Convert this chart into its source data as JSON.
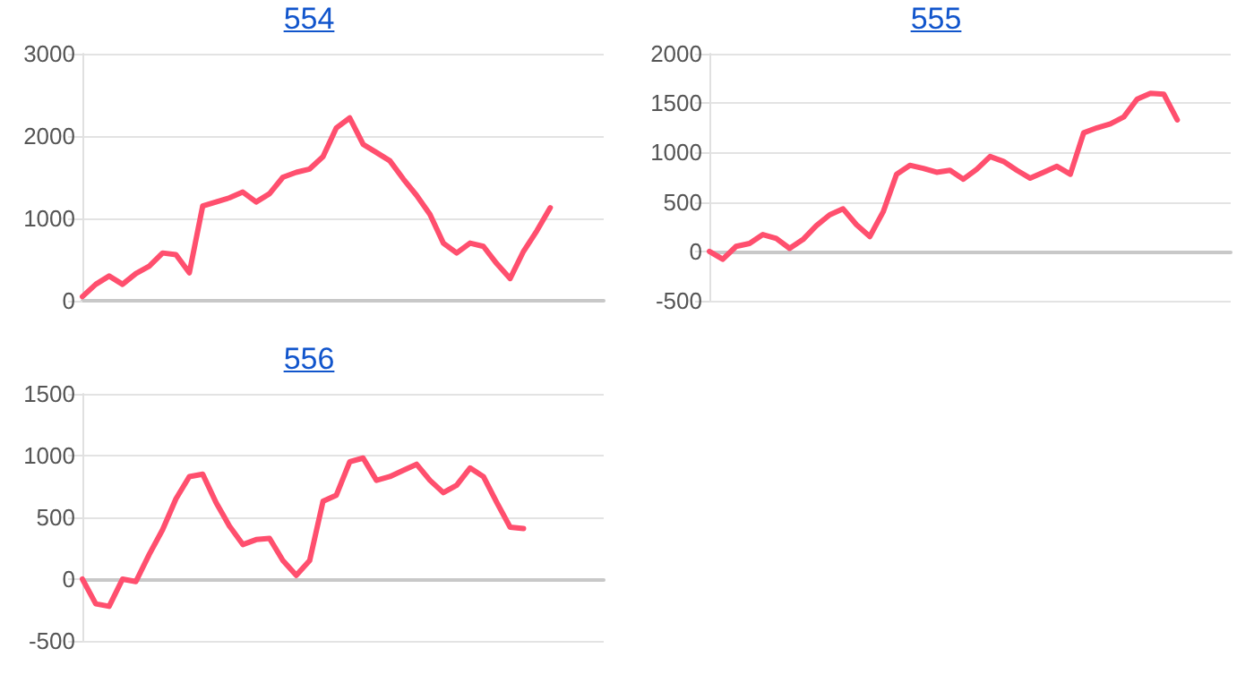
{
  "chart_data": [
    {
      "type": "line",
      "title": "554",
      "categories": [
        null,
        null,
        null,
        null,
        null,
        null,
        null,
        null,
        null,
        null,
        null,
        null,
        null,
        null,
        null,
        null,
        null,
        null,
        null,
        null,
        null,
        null,
        null,
        null,
        null,
        null,
        null,
        null,
        null,
        null,
        null,
        null,
        null,
        null,
        null,
        null,
        null,
        null,
        null,
        null
      ],
      "series": [
        {
          "color": "#ff4f6e",
          "values": [
            50,
            200,
            300,
            200,
            330,
            420,
            580,
            560,
            340,
            1150,
            1200,
            1250,
            1320,
            1200,
            1300,
            1500,
            1560,
            1600,
            1750,
            2100,
            2220,
            1900,
            1800,
            1700,
            1480,
            1280,
            1050,
            700,
            580,
            700,
            660,
            450,
            270,
            600,
            850,
            1130,
            null,
            null,
            null,
            null
          ]
        }
      ],
      "ylim": [
        0,
        3000
      ],
      "yticks": [
        0,
        1000,
        2000,
        3000
      ],
      "grid": "y",
      "tick_labels": "y"
    },
    {
      "type": "line",
      "title": "555",
      "categories": [
        null,
        null,
        null,
        null,
        null,
        null,
        null,
        null,
        null,
        null,
        null,
        null,
        null,
        null,
        null,
        null,
        null,
        null,
        null,
        null,
        null,
        null,
        null,
        null,
        null,
        null,
        null,
        null,
        null,
        null,
        null,
        null,
        null,
        null,
        null,
        null,
        null,
        null,
        null,
        null
      ],
      "series": [
        {
          "color": "#ff4f6e",
          "values": [
            0,
            -80,
            50,
            80,
            170,
            130,
            30,
            120,
            260,
            370,
            430,
            270,
            150,
            400,
            780,
            870,
            840,
            800,
            820,
            730,
            830,
            960,
            910,
            820,
            740,
            800,
            860,
            780,
            1200,
            1250,
            1290,
            1360,
            1540,
            1600,
            1590,
            1330,
            null,
            null,
            null,
            null
          ]
        }
      ],
      "ylim": [
        -500,
        2000
      ],
      "yticks": [
        -500,
        0,
        500,
        1000,
        1500,
        2000
      ],
      "grid": "y",
      "tick_labels": "y"
    },
    {
      "type": "line",
      "title": "556",
      "categories": [
        null,
        null,
        null,
        null,
        null,
        null,
        null,
        null,
        null,
        null,
        null,
        null,
        null,
        null,
        null,
        null,
        null,
        null,
        null,
        null,
        null,
        null,
        null,
        null,
        null,
        null,
        null,
        null,
        null,
        null,
        null,
        null,
        null,
        null,
        null,
        null,
        null,
        null,
        null,
        null
      ],
      "series": [
        {
          "color": "#ff4f6e",
          "values": [
            0,
            -200,
            -220,
            0,
            -20,
            200,
            400,
            650,
            830,
            850,
            620,
            430,
            280,
            320,
            330,
            150,
            30,
            150,
            630,
            680,
            950,
            980,
            800,
            830,
            880,
            930,
            800,
            700,
            760,
            900,
            830,
            620,
            420,
            410,
            null,
            null,
            null,
            null,
            null,
            null
          ]
        }
      ],
      "ylim": [
        -500,
        1500
      ],
      "yticks": [
        -500,
        0,
        500,
        1000,
        1500
      ],
      "grid": "y",
      "tick_labels": "y"
    }
  ]
}
